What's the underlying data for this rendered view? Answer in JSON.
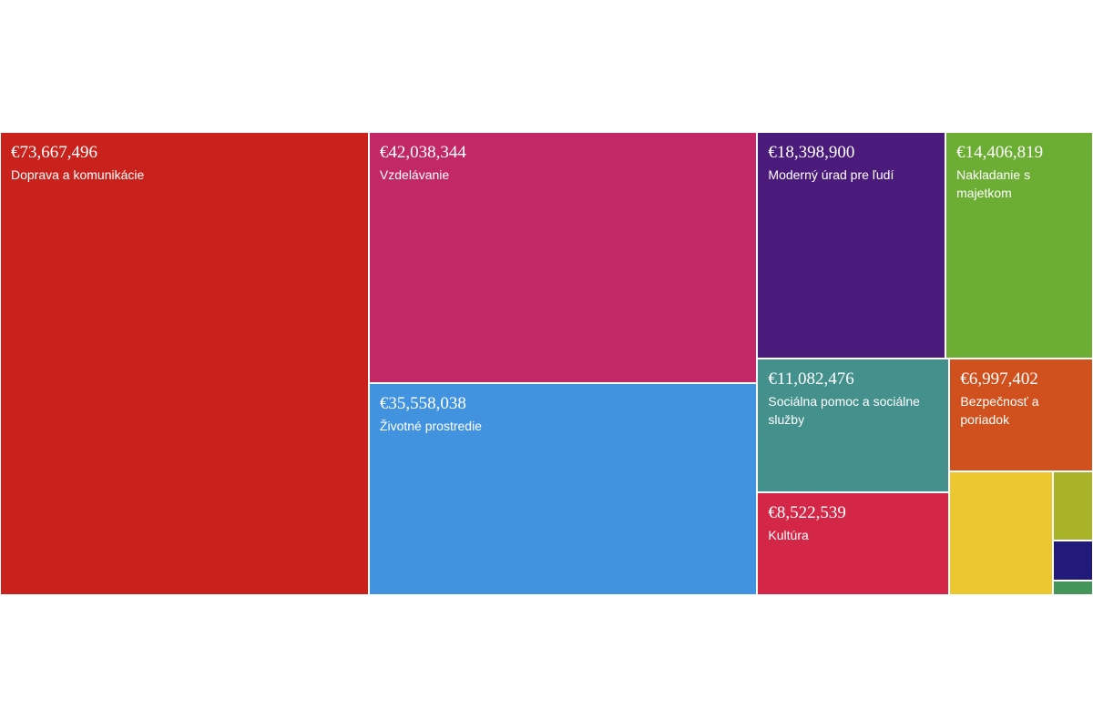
{
  "chart_data": {
    "type": "treemap",
    "currency": "€",
    "items": [
      {
        "label": "Doprava a komunikácie",
        "value": 73667496,
        "display": "€73,667,496",
        "color": "#c9221c"
      },
      {
        "label": "Vzdelávanie",
        "value": 42038344,
        "display": "€42,038,344",
        "color": "#c22866"
      },
      {
        "label": "Životné prostredie",
        "value": 35558038,
        "display": "€35,558,038",
        "color": "#4293df"
      },
      {
        "label": "Moderný úrad pre ľudí",
        "value": 18398900,
        "display": "€18,398,900",
        "color": "#4a1b7a"
      },
      {
        "label": "Nakladanie s majetkom",
        "value": 14406819,
        "display": "€14,406,819",
        "color": "#6cad33"
      },
      {
        "label": "Sociálna pomoc a sociálne služby",
        "value": 11082476,
        "display": "€11,082,476",
        "color": "#43908c"
      },
      {
        "label": "Bezpečnosť a poriadok",
        "value": 6997402,
        "display": "€6,997,402",
        "color": "#d0511d"
      },
      {
        "label": "Kultúra",
        "value": 8522539,
        "display": "€8,522,539",
        "color": "#d42646"
      },
      {
        "label": "",
        "value": 5500000,
        "display": "",
        "color": "#edc72f"
      },
      {
        "label": "",
        "value": 1200000,
        "display": "",
        "color": "#a9b327"
      },
      {
        "label": "",
        "value": 700000,
        "display": "",
        "color": "#221a7a"
      },
      {
        "label": "",
        "value": 250000,
        "display": "",
        "color": "#449559"
      }
    ]
  }
}
